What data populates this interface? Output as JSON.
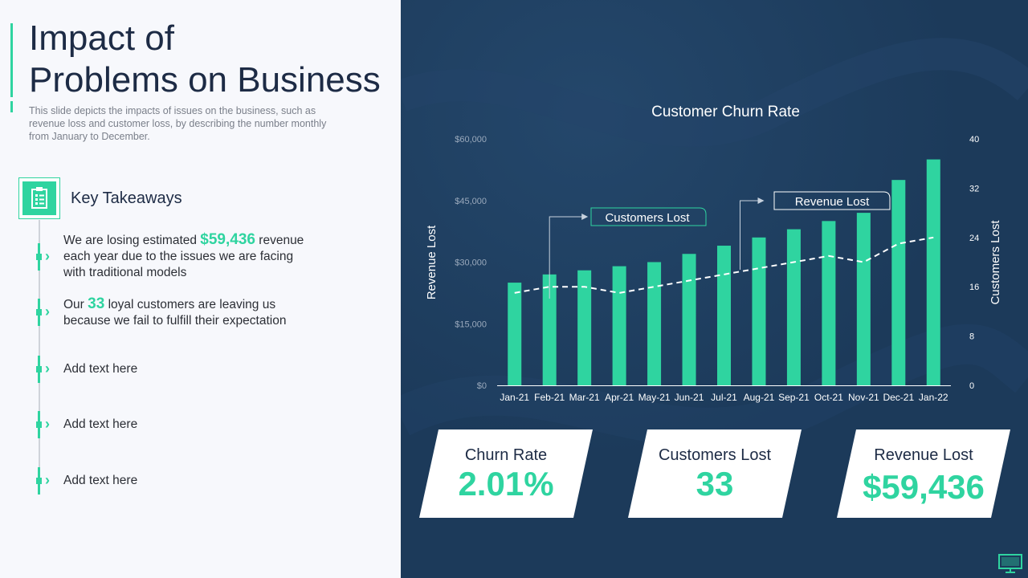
{
  "header": {
    "title_line1": "Impact of",
    "title_line2": "Problems on Business",
    "subtitle": "This slide depicts the impacts of issues on the business, such as revenue  loss and customer loss, by describing the number monthly from January  to December."
  },
  "takeaways": {
    "title": "Key Takeaways",
    "icon": "clipboard-icon",
    "items": [
      {
        "pre": "We are losing estimated ",
        "highlight": "$59,436",
        "post": " revenue  each year due to the issues we are facing with traditional models"
      },
      {
        "pre": "Our ",
        "highlight": "33",
        "post": " loyal customers  are leaving us because we fail to fulfill their expectation"
      },
      {
        "pre": "Add text here",
        "highlight": "",
        "post": ""
      },
      {
        "pre": "Add text here",
        "highlight": "",
        "post": ""
      },
      {
        "pre": "Add text here",
        "highlight": "",
        "post": ""
      }
    ]
  },
  "chart_data": {
    "type": "bar",
    "title": "Customer Churn Rate",
    "categories": [
      "Jan-21",
      "Feb-21",
      "Mar-21",
      "Apr-21",
      "May-21",
      "Jun-21",
      "Jul-21",
      "Aug-21",
      "Sep-21",
      "Oct-21",
      "Nov-21",
      "Dec-21",
      "Jan-22"
    ],
    "series": [
      {
        "name": "Revenue Lost",
        "axis": "left",
        "kind": "bar",
        "values": [
          25000,
          27000,
          28000,
          29000,
          30000,
          32000,
          34000,
          36000,
          38000,
          40000,
          42000,
          50000,
          55000
        ]
      },
      {
        "name": "Customers Lost",
        "axis": "right",
        "kind": "line-dashed",
        "values": [
          15,
          16,
          16,
          15,
          16,
          17,
          18,
          19,
          20,
          21,
          20,
          23,
          24
        ]
      }
    ],
    "ylabel": "Revenue Lost",
    "y2label": "Customers Lost",
    "ylim": [
      0,
      60000
    ],
    "y2lim": [
      0,
      40
    ],
    "yticks": [
      "$0",
      "$15,000",
      "$30,000",
      "$45,000",
      "$60,000"
    ],
    "y2ticks": [
      "0",
      "8",
      "16",
      "24",
      "32",
      "40"
    ],
    "callouts": [
      "Customers Lost",
      "Revenue Lost"
    ],
    "bar_color": "#2fd4a0",
    "line_color": "#ffffff"
  },
  "cards": [
    {
      "label": "Churn Rate",
      "value": "2.01%"
    },
    {
      "label": "Customers Lost",
      "value": "33"
    },
    {
      "label": "Revenue Lost",
      "value": "$59,436"
    }
  ],
  "colors": {
    "accent": "#2fd4a0",
    "panel": "#1c3a5a",
    "text_dark": "#1d2b45"
  },
  "footer": {
    "icon": "monitor-icon"
  }
}
